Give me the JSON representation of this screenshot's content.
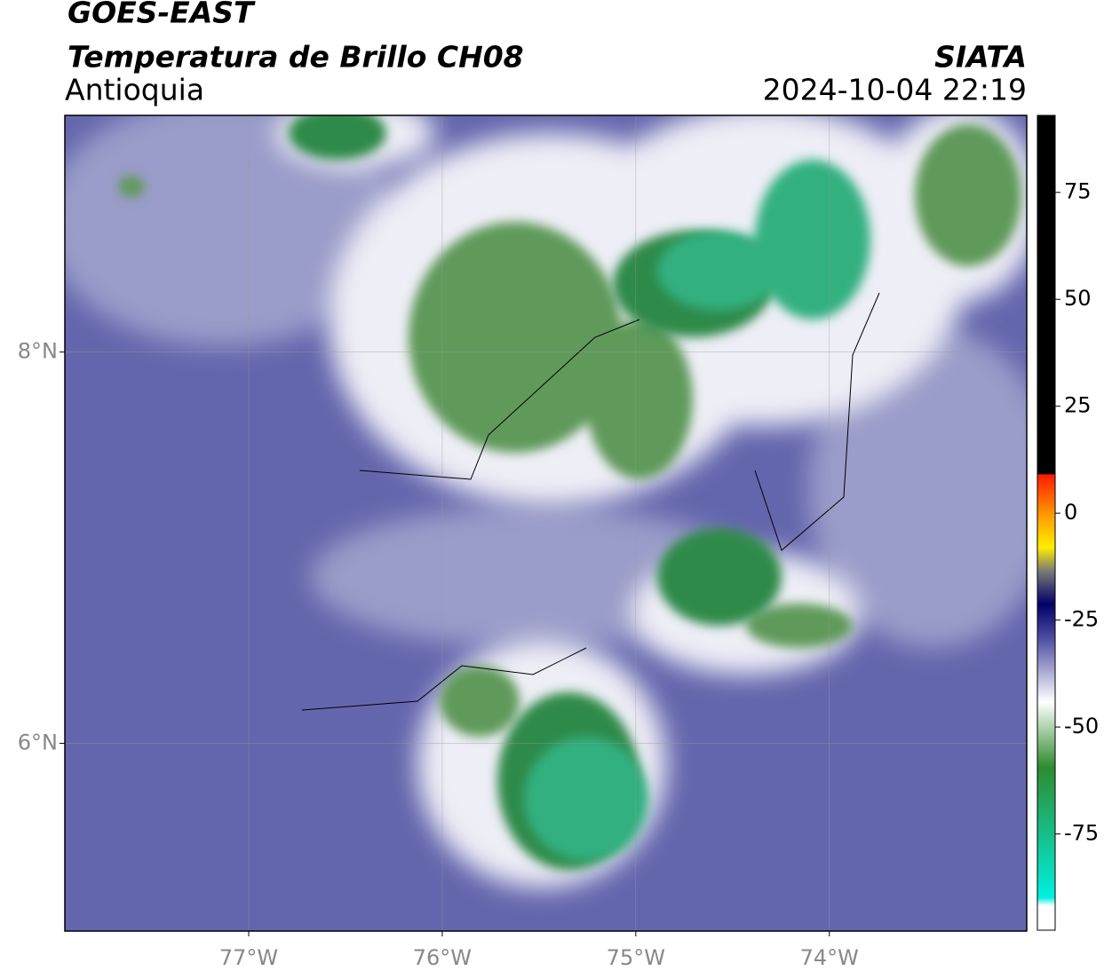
{
  "map": {
    "title": "GOES-EAST",
    "subtitle": "Temperatura de Brillo CH08",
    "region": "Antioquia",
    "source": "SIATA",
    "timestamp": "2024-10-04 22:19",
    "xlim": [
      -77.95,
      -72.98
    ],
    "ylim": [
      5.04,
      9.21
    ],
    "xticks": [
      {
        "value": -77,
        "label": "77°W"
      },
      {
        "value": -76,
        "label": "76°W"
      },
      {
        "value": -75,
        "label": "75°W"
      },
      {
        "value": -74,
        "label": "74°W"
      }
    ],
    "yticks": [
      {
        "value": 8,
        "label": "8°N"
      },
      {
        "value": 6,
        "label": "6°N"
      }
    ],
    "grid": true,
    "colorbar": {
      "lim": [
        -97.5,
        93
      ],
      "ticks": [
        75,
        50,
        25,
        0,
        -25,
        -50,
        -75
      ]
    }
  }
}
